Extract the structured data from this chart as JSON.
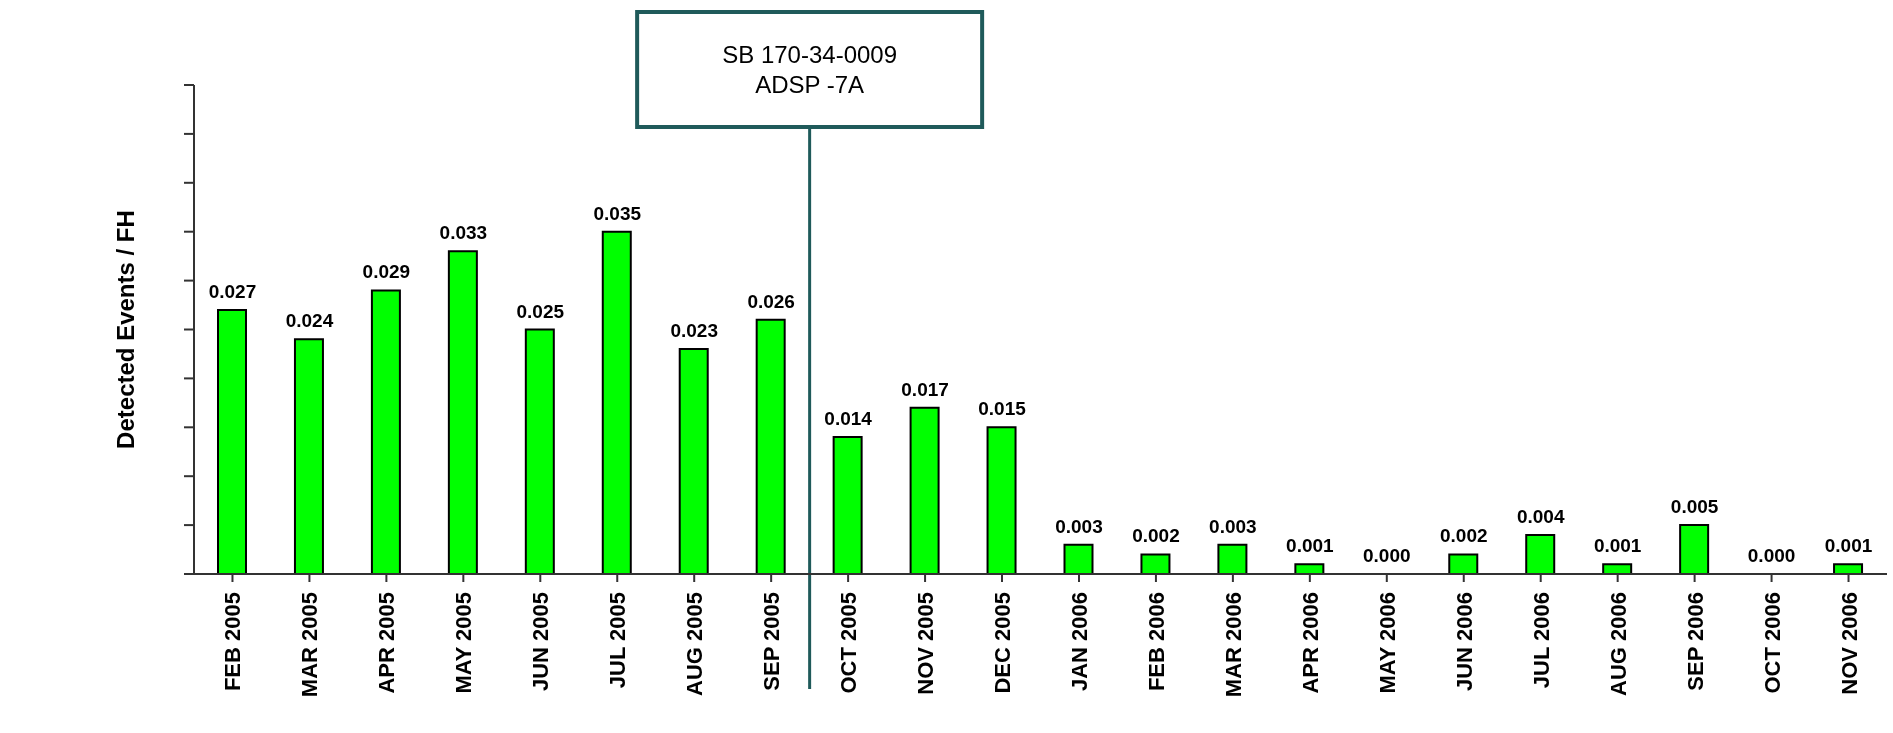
{
  "chart_data": {
    "type": "bar",
    "ylabel": "Detected Events / FH",
    "categories": [
      "FEB 2005",
      "MAR 2005",
      "APR 2005",
      "MAY 2005",
      "JUN 2005",
      "JUL 2005",
      "AUG 2005",
      "SEP 2005",
      "OCT 2005",
      "NOV 2005",
      "DEC 2005",
      "JAN 2006",
      "FEB 2006",
      "MAR 2006",
      "APR 2006",
      "MAY 2006",
      "JUN 2006",
      "JUL 2006",
      "AUG 2006",
      "SEP 2006",
      "OCT 2006",
      "NOV 2006"
    ],
    "values": [
      0.027,
      0.024,
      0.029,
      0.033,
      0.025,
      0.035,
      0.023,
      0.026,
      0.014,
      0.017,
      0.015,
      0.003,
      0.002,
      0.003,
      0.001,
      0,
      0.002,
      0.004,
      0.001,
      0.005,
      0,
      0.001
    ],
    "value_labels": [
      "0.027",
      "0.024",
      "0.029",
      "0.033",
      "0.025",
      "0.035",
      "0.023",
      "0.026",
      "0.014",
      "0.017",
      "0.015",
      "0.003",
      "0.002",
      "0.003",
      "0.001",
      "0.000",
      "0.002",
      "0.004",
      "0.001",
      "0.005",
      "0.000",
      "0.001"
    ],
    "color": "#00ff00",
    "ylim": [
      0,
      0.05
    ],
    "yticks": [
      {
        "value": 0,
        "label": null
      },
      {
        "value": 0.005,
        "label": null
      },
      {
        "value": 0.01,
        "label": null
      },
      {
        "value": 0.015,
        "label": null
      },
      {
        "value": 0.02,
        "label": null
      },
      {
        "value": 0.025,
        "label": null
      },
      {
        "value": 0.03,
        "label": null
      },
      {
        "value": 0.035,
        "label": null
      },
      {
        "value": 0.04,
        "label": null
      },
      {
        "value": 0.045,
        "label": null
      },
      {
        "value": 0.05,
        "label": null
      }
    ],
    "tick_labels": "x",
    "ref_lines": [
      {
        "axis": "x",
        "value": "OCT 2005",
        "label": "SB 170-34-0009\nADSP -7A",
        "color": "#1f5a5a"
      }
    ]
  }
}
